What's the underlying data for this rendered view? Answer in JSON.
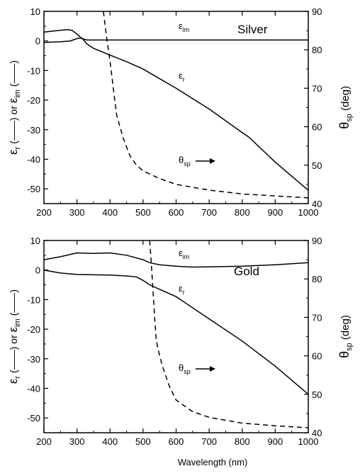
{
  "x_axis_label": "Wavelength (nm)",
  "chart_data": [
    {
      "type": "line",
      "panel_label": "Silver",
      "xlim": [
        200,
        1000
      ],
      "xticks": [
        "200",
        "300",
        "400",
        "500",
        "600",
        "700",
        "800",
        "900",
        "1000"
      ],
      "ylim_left": [
        -55,
        10
      ],
      "yticks_left": [
        "10",
        "0",
        "-10",
        "-20",
        "-30",
        "-40",
        "-50"
      ],
      "ylim_right": [
        40,
        90
      ],
      "yticks_right": [
        "90",
        "80",
        "70",
        "60",
        "50",
        "40"
      ],
      "ylabel_left": {
        "eps": "ε",
        "r": "r",
        "mid1": "(——) or",
        "eps2": "ε",
        "im": "im",
        "end": "(——)"
      },
      "ylabel_right": {
        "theta": "θ",
        "sub": "sp",
        "unit": "(deg)"
      },
      "series": [
        {
          "axis": "left",
          "style": "solid",
          "label": {
            "base": "ε",
            "sub": "im"
          },
          "x": [
            200,
            240,
            270,
            285,
            300,
            315,
            330,
            360,
            400,
            500,
            600,
            700,
            800,
            900,
            1000
          ],
          "y": [
            3.0,
            3.5,
            3.8,
            3.6,
            2.3,
            0.8,
            0.3,
            0.3,
            0.3,
            0.3,
            0.3,
            0.3,
            0.3,
            0.3,
            0.3
          ]
        },
        {
          "axis": "left",
          "style": "solid",
          "label": {
            "base": "ε",
            "sub": "r"
          },
          "x": [
            200,
            250,
            280,
            300,
            315,
            330,
            350,
            400,
            450,
            500,
            600,
            700,
            800,
            820,
            900,
            1000
          ],
          "y": [
            -0.5,
            -0.3,
            0.0,
            0.8,
            1.0,
            -1.0,
            -2.5,
            -4.8,
            -7.0,
            -9.5,
            -16.0,
            -23.0,
            -31.0,
            -32.5,
            -41.0,
            -50.5
          ]
        },
        {
          "axis": "right",
          "style": "dashed",
          "label": {
            "base": "θ",
            "sub": "sp"
          },
          "x": [
            380,
            390,
            400,
            410,
            420,
            440,
            460,
            480,
            500,
            550,
            600,
            700,
            800,
            900,
            1000
          ],
          "y": [
            90,
            83,
            77,
            70,
            63,
            57,
            52.5,
            50,
            48.5,
            46.5,
            45,
            43.5,
            42.5,
            42,
            41.5
          ]
        }
      ]
    },
    {
      "type": "line",
      "panel_label": "Gold",
      "xlim": [
        200,
        1000
      ],
      "xticks": [
        "200",
        "300",
        "400",
        "500",
        "600",
        "700",
        "800",
        "900",
        "1000"
      ],
      "ylim_left": [
        -55,
        10
      ],
      "yticks_left": [
        "10",
        "0",
        "-10",
        "-20",
        "-30",
        "-40",
        "-50"
      ],
      "ylim_right": [
        40,
        90
      ],
      "yticks_right": [
        "90",
        "80",
        "70",
        "60",
        "50",
        "40"
      ],
      "ylabel_left": {
        "eps": "ε",
        "r": "r",
        "mid1": "(——) or",
        "eps2": "ε",
        "im": "im",
        "end": "(——)"
      },
      "ylabel_right": {
        "theta": "θ",
        "sub": "sp",
        "unit": "(deg)"
      },
      "series": [
        {
          "axis": "left",
          "style": "solid",
          "label": {
            "base": "ε",
            "sub": "im"
          },
          "x": [
            200,
            250,
            300,
            350,
            400,
            450,
            500,
            520,
            550,
            600,
            650,
            700,
            800,
            900,
            1000
          ],
          "y": [
            3.5,
            4.5,
            5.8,
            5.6,
            5.8,
            5.0,
            3.5,
            2.5,
            1.8,
            1.3,
            1.0,
            1.1,
            1.3,
            1.8,
            2.5
          ]
        },
        {
          "axis": "left",
          "style": "solid",
          "label": {
            "base": "ε",
            "sub": "r"
          },
          "x": [
            200,
            250,
            300,
            400,
            450,
            480,
            500,
            520,
            550,
            600,
            700,
            800,
            900,
            1000
          ],
          "y": [
            0.0,
            -1.0,
            -1.5,
            -1.7,
            -2.0,
            -2.3,
            -3.5,
            -5.0,
            -6.5,
            -9.0,
            -16.5,
            -24.0,
            -32.5,
            -42.0
          ]
        },
        {
          "axis": "right",
          "style": "dashed",
          "label": {
            "base": "θ",
            "sub": "sp"
          },
          "x": [
            520,
            525,
            530,
            535,
            540,
            550,
            560,
            580,
            600,
            650,
            700,
            800,
            900,
            1000
          ],
          "y": [
            90,
            84,
            77,
            70,
            64,
            60,
            57,
            52,
            48.5,
            45.5,
            44,
            42.5,
            41.8,
            41.3
          ]
        }
      ]
    }
  ]
}
